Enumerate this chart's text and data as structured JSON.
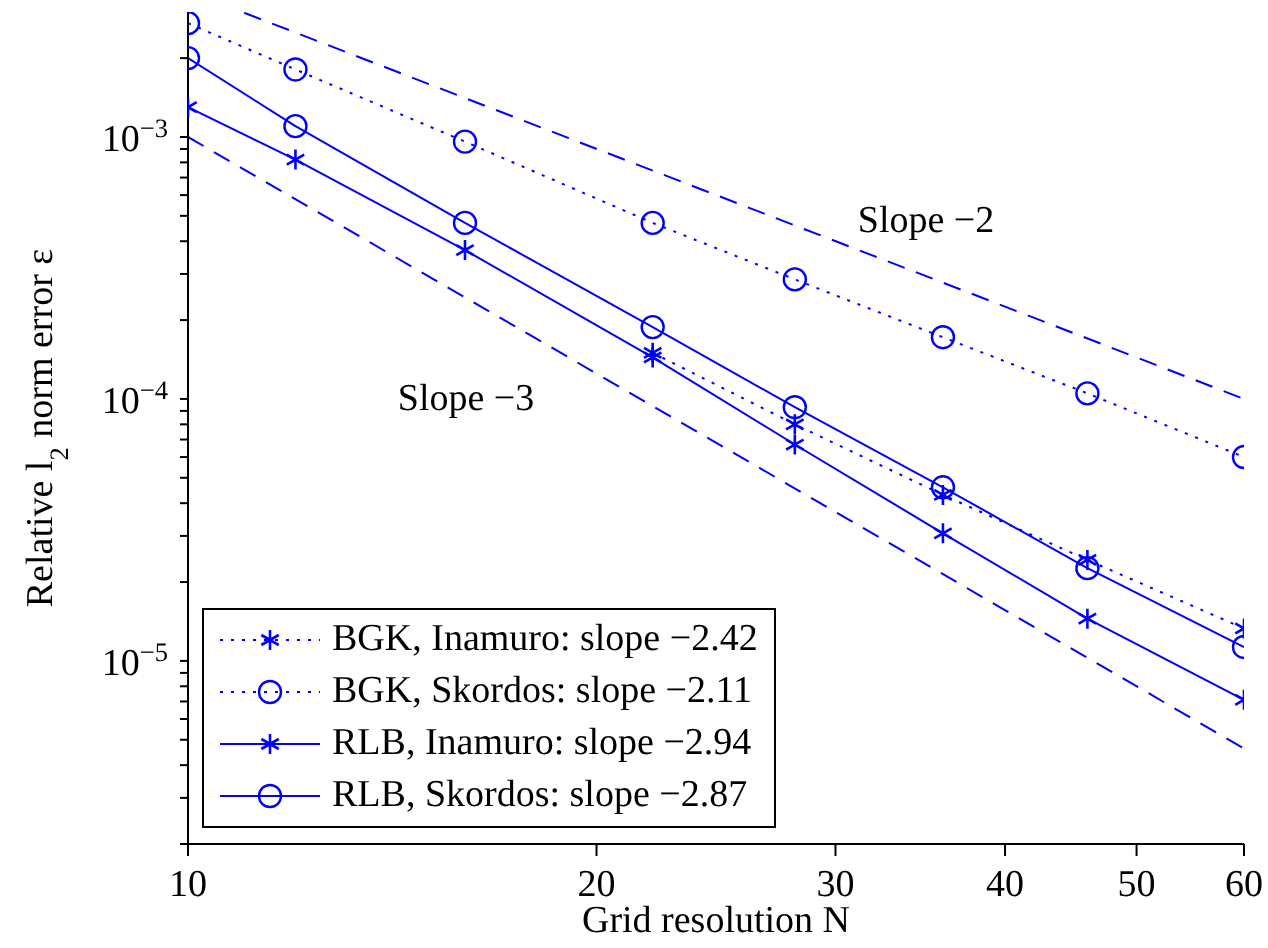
{
  "chart_data": {
    "type": "line",
    "xlabel": "Grid resolution  N",
    "ylabel": "Relative l$_{2}$ norm error  ε",
    "log": "xy",
    "grid": false,
    "legend": "bottom left",
    "x": [
      10,
      12,
      16,
      22,
      28,
      36,
      46,
      60
    ],
    "xlim": [
      10,
      60
    ],
    "xticks": [
      10,
      20,
      30,
      40,
      50,
      60
    ],
    "ylim": [
      2e-06,
      0.003
    ],
    "yticks": [
      {
        "value": 2e-06,
        "label": null
      },
      {
        "value": 3e-06,
        "label": null
      },
      {
        "value": 4e-06,
        "label": null
      },
      {
        "value": 5e-06,
        "label": null
      },
      {
        "value": 6e-06,
        "label": null
      },
      {
        "value": 7e-06,
        "label": null
      },
      {
        "value": 8e-06,
        "label": null
      },
      {
        "value": 9e-06,
        "label": null
      },
      {
        "value": 1e-05,
        "label": "10$^{−5}$"
      },
      {
        "value": 2e-05,
        "label": null
      },
      {
        "value": 3e-05,
        "label": null
      },
      {
        "value": 4e-05,
        "label": null
      },
      {
        "value": 5e-05,
        "label": null
      },
      {
        "value": 6e-05,
        "label": null
      },
      {
        "value": 7e-05,
        "label": null
      },
      {
        "value": 8e-05,
        "label": null
      },
      {
        "value": 9e-05,
        "label": null
      },
      {
        "value": 0.0001,
        "label": "10$^{−4}$"
      },
      {
        "value": 0.0002,
        "label": null
      },
      {
        "value": 0.0003,
        "label": null
      },
      {
        "value": 0.0004,
        "label": null
      },
      {
        "value": 0.0005,
        "label": null
      },
      {
        "value": 0.0006,
        "label": null
      },
      {
        "value": 0.0007,
        "label": null
      },
      {
        "value": 0.0008,
        "label": null
      },
      {
        "value": 0.0009,
        "label": null
      },
      {
        "value": 0.001,
        "label": "10$^{−3}$"
      },
      {
        "value": 0.002,
        "label": null
      }
    ],
    "series": [
      {
        "name": "BGK, Inamuro: slope −2.42",
        "color": "#0000ff",
        "marker": "cross",
        "line_style": "dotted",
        "values": [
          null,
          null,
          null,
          0.00015,
          8e-05,
          4.3e-05,
          2.43e-05,
          1.33e-05
        ]
      },
      {
        "name": "BGK, Skordos: slope −2.11",
        "color": "#0000ff",
        "marker": "circle",
        "line_style": "dotted",
        "values": [
          0.00272,
          0.00181,
          0.00096,
          0.00047,
          0.000286,
          0.000172,
          0.000105,
          6e-05
        ]
      },
      {
        "name": "RLB, Inamuro: slope −2.94",
        "color": "#0000ff",
        "marker": "cross",
        "line_style": "solid",
        "values": [
          0.0013,
          0.00082,
          0.00037,
          0.000144,
          6.7e-05,
          3.07e-05,
          1.45e-05,
          7.1e-06
        ]
      },
      {
        "name": "RLB, Skordos: slope −2.87",
        "color": "#0000ff",
        "marker": "circle",
        "line_style": "solid",
        "values": [
          0.002,
          0.0011,
          0.00047,
          0.000188,
          9.3e-05,
          4.6e-05,
          2.26e-05,
          1.13e-05
        ]
      },
      {
        "type": "line",
        "color": "#0000ff",
        "marker": "none",
        "line_style": "dashed",
        "x": [
          11,
          60
        ],
        "values": [
          0.00298,
          0.0001
        ]
      },
      {
        "type": "line",
        "color": "#0000ff",
        "marker": "none",
        "line_style": "dashed",
        "x": [
          10,
          60
        ],
        "values": [
          0.001,
          4.63e-06
        ]
      }
    ],
    "annotations": [
      "Slope  −2",
      "Slope  −3"
    ]
  }
}
